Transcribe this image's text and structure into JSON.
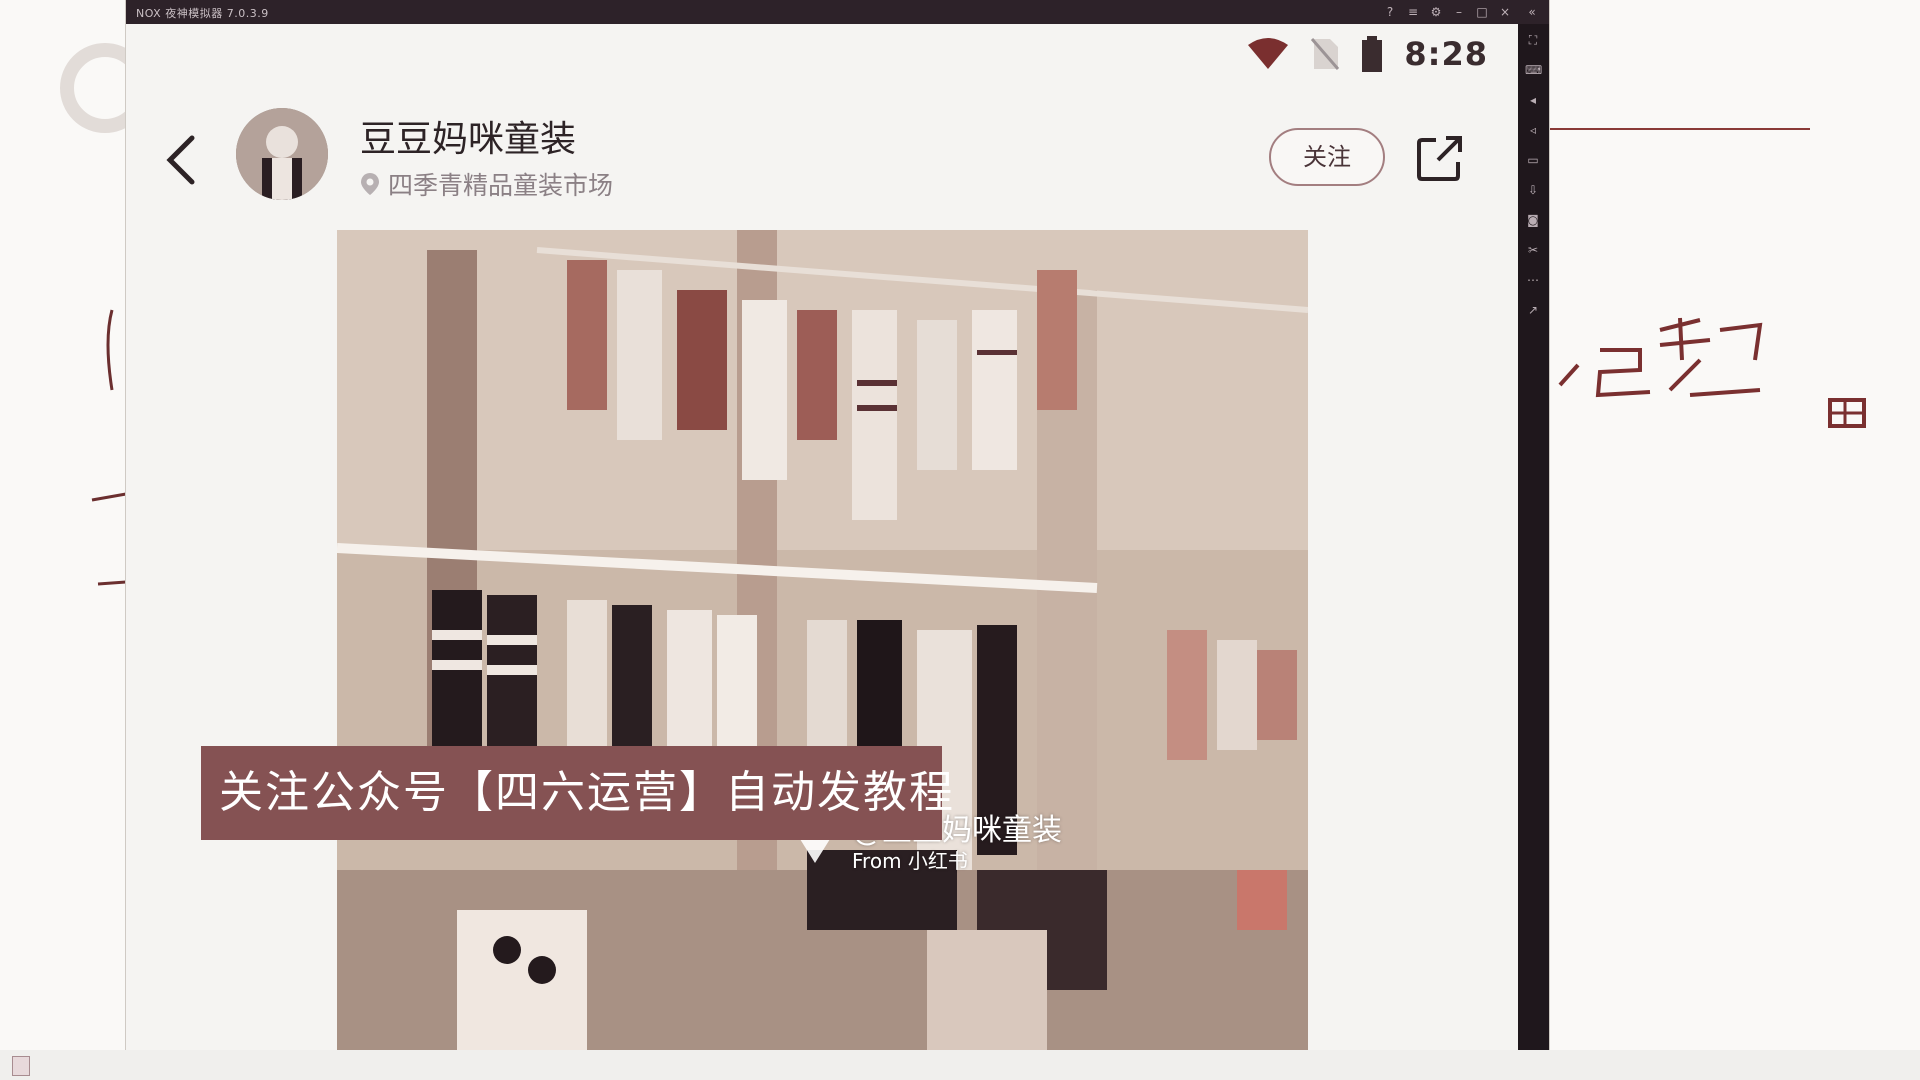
{
  "emulator": {
    "title": "NOX 夜神模拟器 7.0.3.9"
  },
  "status_bar": {
    "time": "8:28"
  },
  "header": {
    "shop_name": "豆豆妈咪童装",
    "location": "四季青精品童装市场",
    "follow_label": "关注"
  },
  "photo": {
    "watermark_handle": "@豆豆妈咪童装",
    "watermark_from": "From 小红书"
  },
  "banner": {
    "text": "关注公众号【四六运营】自动发教程"
  },
  "whiteboard": {
    "handwriting": "⼀己架"
  },
  "icons": {
    "back": "chevron-left-icon",
    "location": "location-pin-icon",
    "share": "share-icon",
    "wifi": "wifi-icon",
    "sim": "no-sim-icon",
    "battery": "battery-icon"
  },
  "colors": {
    "banner": "#855253",
    "titlebar": "#2d2229",
    "sidebar": "#1f171c",
    "follow_border": "#a37e80"
  }
}
